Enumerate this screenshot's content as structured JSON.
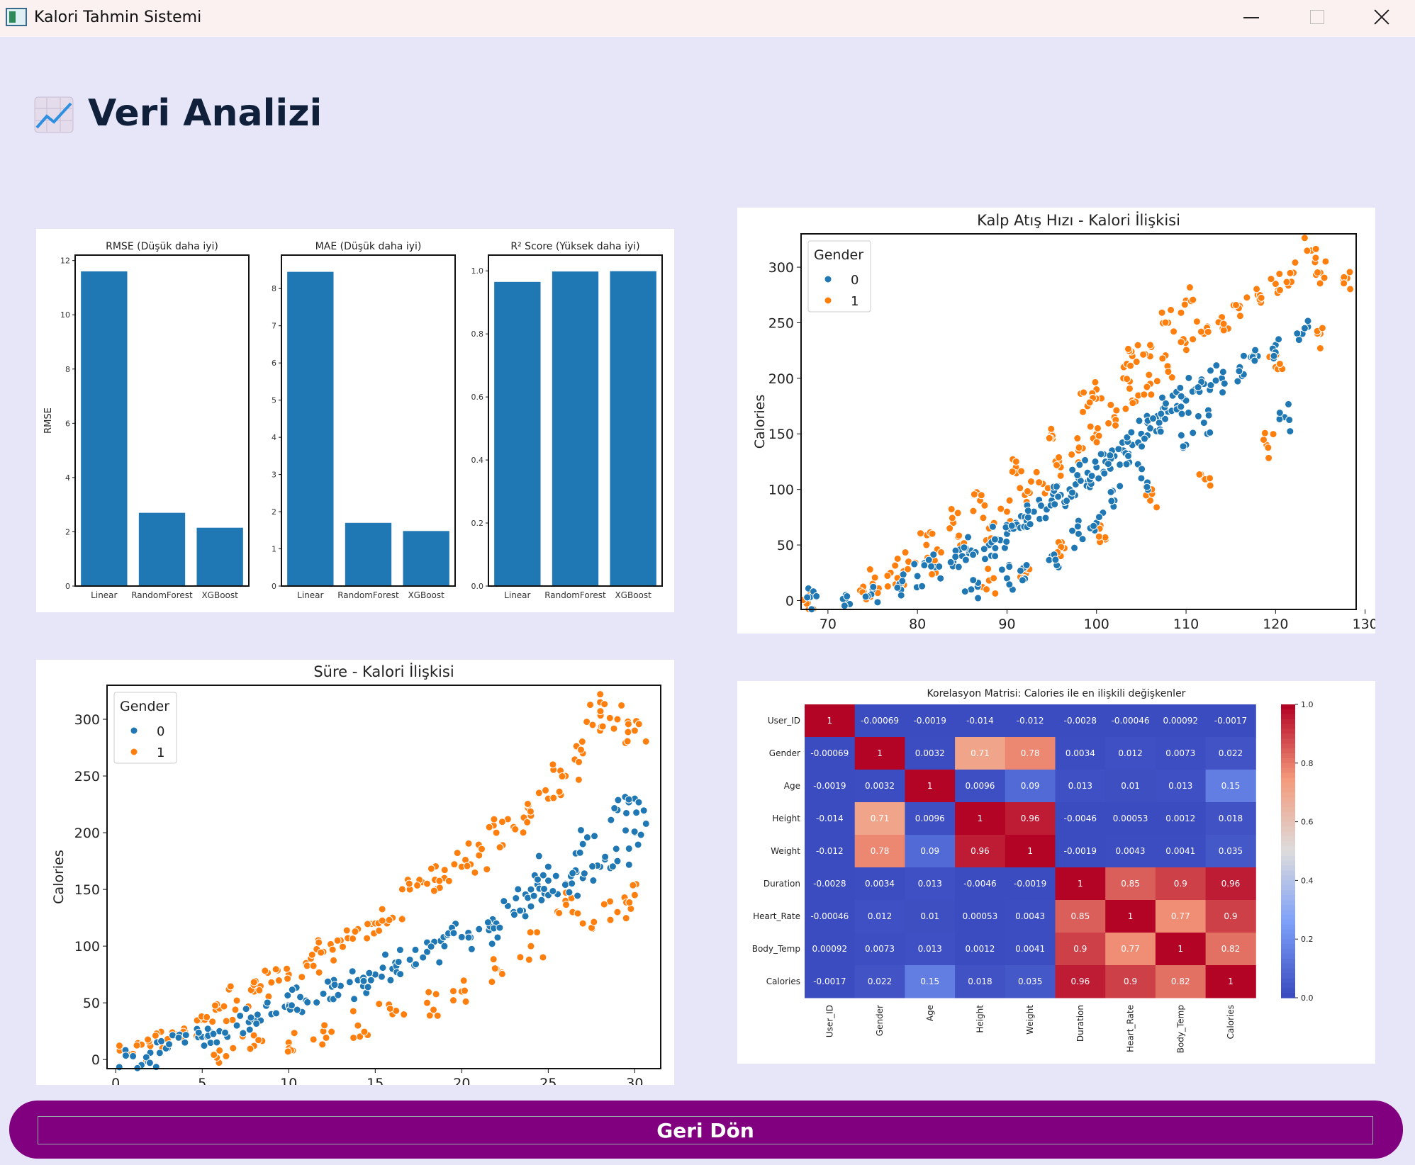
{
  "window": {
    "title": "Kalori Tahmin Sistemi",
    "icon": "app-icon"
  },
  "header": {
    "title": "Veri Analizi",
    "icon": "chart-increasing-icon"
  },
  "back_button": {
    "label": "Geri Dön"
  },
  "chart_data": [
    {
      "type": "bar",
      "title": "RMSE (Düşük daha iyi)",
      "ylabel": "RMSE",
      "categories": [
        "Linear",
        "RandomForest",
        "XGBoost"
      ],
      "values": [
        11.6,
        2.7,
        2.15
      ],
      "ylim": [
        0,
        12.2
      ],
      "yticks": [
        0,
        2,
        4,
        6,
        8,
        10,
        12
      ],
      "color": "#1f77b4"
    },
    {
      "type": "bar",
      "title": "MAE (Düşük daha iyi)",
      "categories": [
        "Linear",
        "RandomForest",
        "XGBoost"
      ],
      "values": [
        8.45,
        1.7,
        1.48
      ],
      "ylim": [
        0,
        8.9
      ],
      "yticks": [
        0,
        1,
        2,
        3,
        4,
        5,
        6,
        7,
        8
      ],
      "color": "#1f77b4"
    },
    {
      "type": "bar",
      "title": "R² Score (Yüksek daha iyi)",
      "categories": [
        "Linear",
        "RandomForest",
        "XGBoost"
      ],
      "values": [
        0.965,
        0.998,
        0.999
      ],
      "ylim": [
        0,
        1.05
      ],
      "yticks": [
        "0.0",
        "0.2",
        "0.4",
        "0.6",
        "0.8",
        "1.0"
      ],
      "color": "#1f77b4"
    },
    {
      "type": "scatter",
      "title": "Kalp Atış Hızı - Kalori İlişkisi",
      "ylabel": "Calories",
      "xlim": [
        67,
        129
      ],
      "ylim": [
        -8,
        330
      ],
      "xticks": [
        70,
        80,
        90,
        100,
        110,
        120,
        130
      ],
      "yticks": [
        0,
        50,
        100,
        150,
        200,
        250,
        300
      ],
      "legend": {
        "title": "Gender",
        "placement": "upper-left",
        "entries": [
          "0",
          "1"
        ]
      },
      "series": [
        {
          "name": "0",
          "color": "#1f77b4",
          "points": [
            [
              68,
              3
            ],
            [
              72,
              5
            ],
            [
              75,
              10
            ],
            [
              78,
              15
            ],
            [
              80,
              22
            ],
            [
              82,
              30
            ],
            [
              84,
              35
            ],
            [
              85,
              40
            ],
            [
              86,
              45
            ],
            [
              88,
              50
            ],
            [
              89,
              55
            ],
            [
              90,
              60
            ],
            [
              91,
              70
            ],
            [
              92,
              75
            ],
            [
              93,
              80
            ],
            [
              94,
              85
            ],
            [
              95,
              90
            ],
            [
              96,
              95
            ],
            [
              97,
              100
            ],
            [
              98,
              110
            ],
            [
              99,
              115
            ],
            [
              100,
              120
            ],
            [
              101,
              125
            ],
            [
              102,
              130
            ],
            [
              103,
              135
            ],
            [
              104,
              140
            ],
            [
              105,
              150
            ],
            [
              106,
              155
            ],
            [
              107,
              160
            ],
            [
              108,
              170
            ],
            [
              109,
              175
            ],
            [
              110,
              180
            ],
            [
              111,
              190
            ],
            [
              112,
              195
            ],
            [
              114,
              200
            ],
            [
              116,
              210
            ],
            [
              118,
              220
            ],
            [
              120,
              230
            ],
            [
              121,
              165
            ],
            [
              123,
              240
            ],
            [
              100,
              70
            ],
            [
              95,
              40
            ],
            [
              90,
              20
            ],
            [
              86,
              10
            ],
            [
              105,
              110
            ],
            [
              110,
              140
            ],
            [
              112,
              160
            ],
            [
              102,
              90
            ],
            [
              98,
              60
            ],
            [
              92,
              30
            ]
          ]
        },
        {
          "name": "1",
          "color": "#ff7f0e",
          "points": [
            [
              68,
              5
            ],
            [
              74,
              8
            ],
            [
              78,
              20
            ],
            [
              82,
              35
            ],
            [
              85,
              50
            ],
            [
              88,
              65
            ],
            [
              90,
              80
            ],
            [
              92,
              95
            ],
            [
              94,
              105
            ],
            [
              96,
              120
            ],
            [
              98,
              135
            ],
            [
              100,
              150
            ],
            [
              102,
              165
            ],
            [
              104,
              180
            ],
            [
              106,
              195
            ],
            [
              108,
              210
            ],
            [
              110,
              225
            ],
            [
              112,
              240
            ],
            [
              114,
              255
            ],
            [
              116,
              265
            ],
            [
              118,
              275
            ],
            [
              120,
              285
            ],
            [
              122,
              295
            ],
            [
              124,
              315
            ],
            [
              125,
              295
            ],
            [
              128,
              290
            ],
            [
              125,
              240
            ],
            [
              120,
              210
            ],
            [
              119,
              140
            ],
            [
              112,
              110
            ],
            [
              106,
              90
            ],
            [
              101,
              55
            ],
            [
              96,
              40
            ],
            [
              92,
              30
            ],
            [
              88,
              18
            ],
            [
              100,
              190
            ],
            [
              104,
              220
            ],
            [
              108,
              250
            ],
            [
              110,
              270
            ],
            [
              106,
              230
            ],
            [
              103,
              200
            ],
            [
              99,
              175
            ],
            [
              95,
              150
            ],
            [
              91,
              120
            ],
            [
              87,
              90
            ],
            [
              84,
              70
            ],
            [
              81,
              50
            ],
            [
              79,
              35
            ],
            [
              77,
              25
            ],
            [
              75,
              15
            ]
          ]
        }
      ]
    },
    {
      "type": "scatter",
      "title": "Süre - Kalori İlişkisi",
      "ylabel": "Calories",
      "xlim": [
        -0.5,
        31.5
      ],
      "ylim": [
        -8,
        330
      ],
      "xticks": [
        0,
        5,
        10,
        15,
        20,
        25,
        30
      ],
      "yticks": [
        0,
        50,
        100,
        150,
        200,
        250,
        300
      ],
      "legend": {
        "title": "Gender",
        "placement": "upper-left",
        "entries": [
          "0",
          "1"
        ]
      },
      "series": [
        {
          "name": "0",
          "color": "#1f77b4",
          "points": [
            [
              1,
              3
            ],
            [
              2,
              6
            ],
            [
              3,
              10
            ],
            [
              4,
              15
            ],
            [
              5,
              20
            ],
            [
              6,
              25
            ],
            [
              7,
              30
            ],
            [
              8,
              35
            ],
            [
              9,
              40
            ],
            [
              10,
              48
            ],
            [
              11,
              52
            ],
            [
              12,
              58
            ],
            [
              13,
              65
            ],
            [
              14,
              70
            ],
            [
              15,
              75
            ],
            [
              16,
              80
            ],
            [
              17,
              88
            ],
            [
              18,
              95
            ],
            [
              19,
              100
            ],
            [
              20,
              108
            ],
            [
              21,
              115
            ],
            [
              22,
              120
            ],
            [
              23,
              130
            ],
            [
              24,
              135
            ],
            [
              25,
              145
            ],
            [
              26,
              155
            ],
            [
              27,
              160
            ],
            [
              28,
              170
            ],
            [
              29,
              175
            ],
            [
              30,
              230
            ],
            [
              30,
              200
            ],
            [
              29,
              220
            ],
            [
              27,
              190
            ],
            [
              25,
              170
            ],
            [
              24,
              150
            ]
          ]
        },
        {
          "name": "1",
          "color": "#ff7f0e",
          "points": [
            [
              1,
              5
            ],
            [
              2,
              12
            ],
            [
              3,
              18
            ],
            [
              4,
              25
            ],
            [
              5,
              35
            ],
            [
              6,
              45
            ],
            [
              7,
              52
            ],
            [
              8,
              60
            ],
            [
              9,
              68
            ],
            [
              10,
              75
            ],
            [
              11,
              85
            ],
            [
              12,
              95
            ],
            [
              13,
              105
            ],
            [
              14,
              115
            ],
            [
              15,
              120
            ],
            [
              16,
              125
            ],
            [
              17,
              150
            ],
            [
              18,
              155
            ],
            [
              19,
              160
            ],
            [
              20,
              170
            ],
            [
              21,
              180
            ],
            [
              22,
              200
            ],
            [
              23,
              205
            ],
            [
              24,
              215
            ],
            [
              25,
              230
            ],
            [
              26,
              250
            ],
            [
              27,
              270
            ],
            [
              28,
              315
            ],
            [
              29,
              300
            ],
            [
              30,
              290
            ],
            [
              28,
              290
            ],
            [
              26,
              140
            ],
            [
              24,
              100
            ],
            [
              22,
              80
            ],
            [
              20,
              60
            ],
            [
              18,
              50
            ],
            [
              16,
              40
            ],
            [
              14,
              30
            ],
            [
              12,
              25
            ],
            [
              10,
              15
            ],
            [
              8,
              12
            ],
            [
              6,
              8
            ],
            [
              30,
              145
            ],
            [
              29,
              130
            ],
            [
              27,
              120
            ]
          ]
        }
      ]
    },
    {
      "type": "heatmap",
      "title": "Korelasyon Matrisi: Calories ile en ilişkili değişkenler",
      "row_labels": [
        "User_ID",
        "Gender",
        "Age",
        "Height",
        "Weight",
        "Duration",
        "Heart_Rate",
        "Body_Temp",
        "Calories"
      ],
      "col_labels": [
        "User_ID",
        "Gender",
        "Age",
        "Height",
        "Weight",
        "Duration",
        "Heart_Rate",
        "Body_Temp",
        "Calories"
      ],
      "values": [
        [
          1,
          -0.00069,
          -0.0019,
          -0.014,
          -0.012,
          -0.0028,
          -0.00046,
          0.00092,
          -0.0017
        ],
        [
          -0.00069,
          1,
          0.0032,
          0.71,
          0.78,
          0.0034,
          0.012,
          0.0073,
          0.022
        ],
        [
          -0.0019,
          0.0032,
          1,
          0.0096,
          0.09,
          0.013,
          0.01,
          0.013,
          0.15
        ],
        [
          -0.014,
          0.71,
          0.0096,
          1,
          0.96,
          -0.0046,
          0.00053,
          0.0012,
          0.018
        ],
        [
          -0.012,
          0.78,
          0.09,
          0.96,
          1,
          -0.0019,
          0.0043,
          0.0041,
          0.035
        ],
        [
          -0.0028,
          0.0034,
          0.013,
          -0.0046,
          -0.0019,
          1,
          0.85,
          0.9,
          0.96
        ],
        [
          -0.00046,
          0.012,
          0.01,
          0.00053,
          0.0043,
          0.85,
          1,
          0.77,
          0.9
        ],
        [
          0.00092,
          0.0073,
          0.013,
          0.0012,
          0.0041,
          0.9,
          0.77,
          1,
          0.82
        ],
        [
          -0.0017,
          0.022,
          0.15,
          0.018,
          0.035,
          0.96,
          0.9,
          0.82,
          1
        ]
      ],
      "cell_text": [
        [
          "1",
          "-0.00069",
          "-0.0019",
          "-0.014",
          "-0.012",
          "-0.0028",
          "-0.00046",
          "0.00092",
          "-0.0017"
        ],
        [
          "-0.00069",
          "1",
          "0.0032",
          "0.71",
          "0.78",
          "0.0034",
          "0.012",
          "0.0073",
          "0.022"
        ],
        [
          "-0.0019",
          "0.0032",
          "1",
          "0.0096",
          "0.09",
          "0.013",
          "0.01",
          "0.013",
          "0.15"
        ],
        [
          "-0.014",
          "0.71",
          "0.0096",
          "1",
          "0.96",
          "-0.0046",
          "0.00053",
          "0.0012",
          "0.018"
        ],
        [
          "-0.012",
          "0.78",
          "0.09",
          "0.96",
          "1",
          "-0.0019",
          "0.0043",
          "0.0041",
          "0.035"
        ],
        [
          "-0.0028",
          "0.0034",
          "0.013",
          "-0.0046",
          "-0.0019",
          "1",
          "0.85",
          "0.9",
          "0.96"
        ],
        [
          "-0.00046",
          "0.012",
          "0.01",
          "0.00053",
          "0.0043",
          "0.85",
          "1",
          "0.77",
          "0.9"
        ],
        [
          "0.00092",
          "0.0073",
          "0.013",
          "0.0012",
          "0.0041",
          "0.9",
          "0.77",
          "1",
          "0.82"
        ],
        [
          "-0.0017",
          "0.022",
          "0.15",
          "0.018",
          "0.035",
          "0.96",
          "0.9",
          "0.82",
          "1"
        ]
      ],
      "colorbar": {
        "colormap": "coolwarm",
        "range": [
          0,
          1
        ],
        "ticks": [
          "0.0",
          "0.2",
          "0.4",
          "0.6",
          "0.8",
          "1.0"
        ]
      }
    }
  ]
}
